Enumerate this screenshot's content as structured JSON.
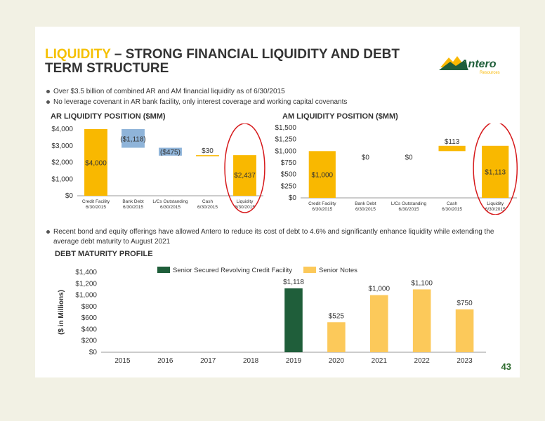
{
  "title_highlight": "LIQUIDITY",
  "title_rest": " – STRONG FINANCIAL LIQUIDITY AND DEBT TERM STRUCTURE",
  "logo": {
    "name": "Antero",
    "sub": "Resources"
  },
  "bullets_top": [
    "Over $3.5 billion of combined AR and AM financial liquidity as of 6/30/2015",
    "No leverage covenant in AR bank facility, only interest coverage and working capital covenants"
  ],
  "bullet_mid": "Recent bond and equity offerings have allowed Antero to reduce its cost of debt to 4.6% and significantly enhance liquidity while extending the average debt maturity to August 2021",
  "section_debt": "DEBT MATURITY PROFILE",
  "page_number": "43",
  "colors": {
    "gold": "#f9b800",
    "blue": "#8fb4d9",
    "green": "#1f5e3a",
    "light_gold": "#fcc95a",
    "red": "#d6191b"
  },
  "chart_data": [
    {
      "type": "bar",
      "title": "AR LIQUIDITY POSITION ($MM)",
      "categories": [
        "Credit Facility\n6/30/2015",
        "Bank Debt\n6/30/2015",
        "L/Cs Outstanding\n6/30/2015",
        "Cash\n6/30/2015",
        "Liquidity\n6/30/2015"
      ],
      "bars": [
        {
          "base": 0,
          "value": 4000,
          "label": "$4,000",
          "kind": "total"
        },
        {
          "base": 2882,
          "value": 1118,
          "label": "($1,118)",
          "kind": "neg"
        },
        {
          "base": 2407,
          "value": 475,
          "label": "($475)",
          "kind": "neg"
        },
        {
          "base": 2407,
          "value": 30,
          "label": "$30",
          "kind": "pos"
        },
        {
          "base": 0,
          "value": 2437,
          "label": "$2,437",
          "kind": "total"
        }
      ],
      "ylim": [
        0,
        4000
      ],
      "yticks": [
        "$0",
        "$1,000",
        "$2,000",
        "$3,000",
        "$4,000"
      ],
      "highlight": "Liquidity"
    },
    {
      "type": "bar",
      "title": "AM LIQUIDITY POSITION ($MM)",
      "categories": [
        "Credit Facility\n6/30/2015",
        "Bank Debt\n6/30/2015",
        "L/Cs Outstanding\n6/30/2015",
        "Cash\n6/30/2015",
        "Liquidity\n6/30/2015"
      ],
      "bars": [
        {
          "base": 0,
          "value": 1000,
          "label": "$1,000",
          "kind": "total"
        },
        {
          "base": 1000,
          "value": 0,
          "label": "$0",
          "kind": "none"
        },
        {
          "base": 1000,
          "value": 0,
          "label": "$0",
          "kind": "none"
        },
        {
          "base": 1000,
          "value": 113,
          "label": "$113",
          "kind": "pos"
        },
        {
          "base": 0,
          "value": 1113,
          "label": "$1,113",
          "kind": "total"
        }
      ],
      "ylim": [
        0,
        1500
      ],
      "yticks": [
        "$0",
        "$250",
        "$500",
        "$750",
        "$1,000",
        "$1,250",
        "$1,500"
      ],
      "highlight": "Liquidity"
    },
    {
      "type": "bar",
      "title": "DEBT MATURITY PROFILE",
      "categories": [
        "2015",
        "2016",
        "2017",
        "2018",
        "2019",
        "2020",
        "2021",
        "2022",
        "2023"
      ],
      "series": [
        {
          "name": "Senior Secured Revolving Credit Facility",
          "values": [
            0,
            0,
            0,
            0,
            1118,
            0,
            0,
            0,
            0
          ]
        },
        {
          "name": "Senior Notes",
          "values": [
            0,
            0,
            0,
            0,
            0,
            525,
            1000,
            1100,
            750
          ]
        }
      ],
      "data_labels": [
        "",
        "",
        "",
        "",
        "$1,118",
        "$525",
        "$1,000",
        "$1,100",
        "$750"
      ],
      "ylabel": "($ in Millions)",
      "ylim": [
        0,
        1400
      ],
      "yticks": [
        "$0",
        "$200",
        "$400",
        "$600",
        "$800",
        "$1,000",
        "$1,200",
        "$1,400"
      ],
      "legend": "top"
    }
  ]
}
